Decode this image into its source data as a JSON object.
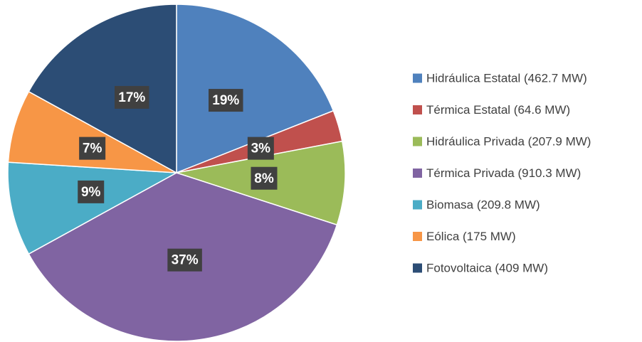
{
  "chart_data": {
    "type": "pie",
    "categories": [
      "Hidráulica Estatal (462.7 MW)",
      "Térmica Estatal (64.6 MW)",
      "Hidráulica Privada (207.9 MW)",
      "Térmica Privada (910.3 MW)",
      "Biomasa (209.8 MW)",
      "Eólica (175 MW)",
      "Fotovoltaica (409 MW)"
    ],
    "values": [
      19,
      3,
      8,
      37,
      9,
      7,
      17
    ],
    "value_labels": [
      "19%",
      "3%",
      "8%",
      "37%",
      "9%",
      "7%",
      "17%"
    ],
    "colors": [
      "#4f81bd",
      "#c0504d",
      "#9bbb59",
      "#8064a2",
      "#4bacc6",
      "#f79646",
      "#2c4d75"
    ],
    "legend": "right"
  }
}
